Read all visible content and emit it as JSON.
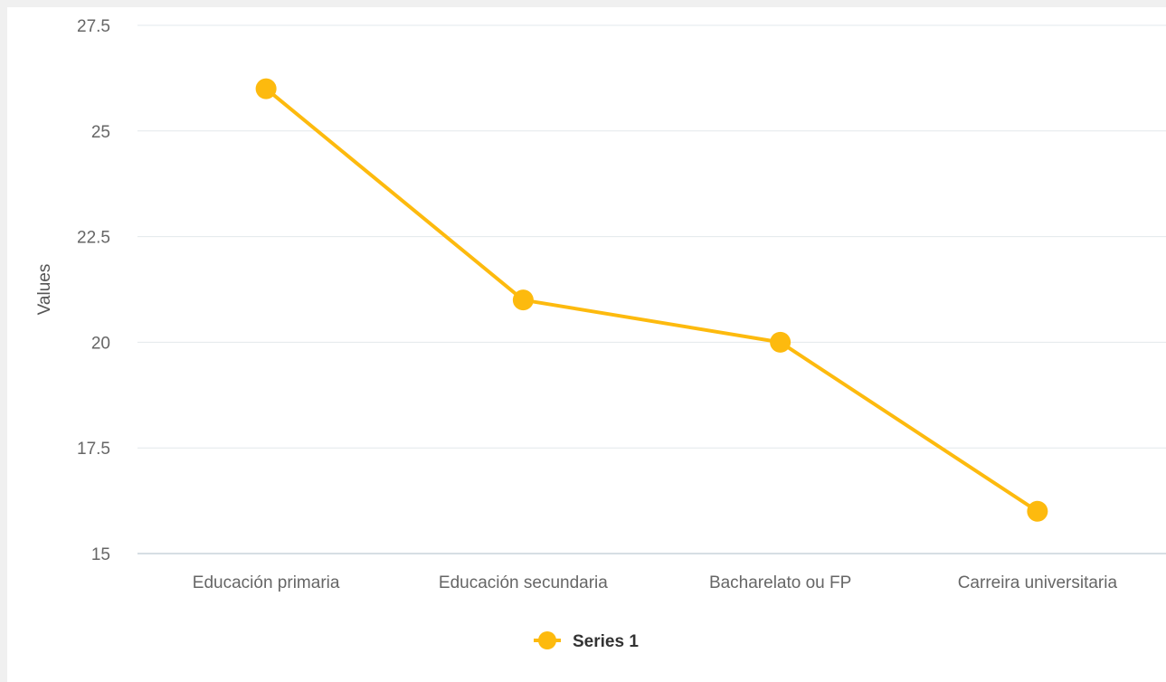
{
  "chart_data": {
    "type": "line",
    "categories": [
      "Educación primaria",
      "Educación secundaria",
      "Bacharelato ou FP",
      "Carreira universitaria"
    ],
    "series": [
      {
        "name": "Series 1",
        "values": [
          26,
          21,
          20,
          16
        ],
        "color": "#FDBA0E"
      }
    ],
    "ylabel": "Values",
    "ylim": [
      15,
      27.5
    ],
    "yticks": [
      "15",
      "17.5",
      "20",
      "22.5",
      "25",
      "27.5"
    ],
    "grid": true,
    "legend": "bottom-center"
  }
}
